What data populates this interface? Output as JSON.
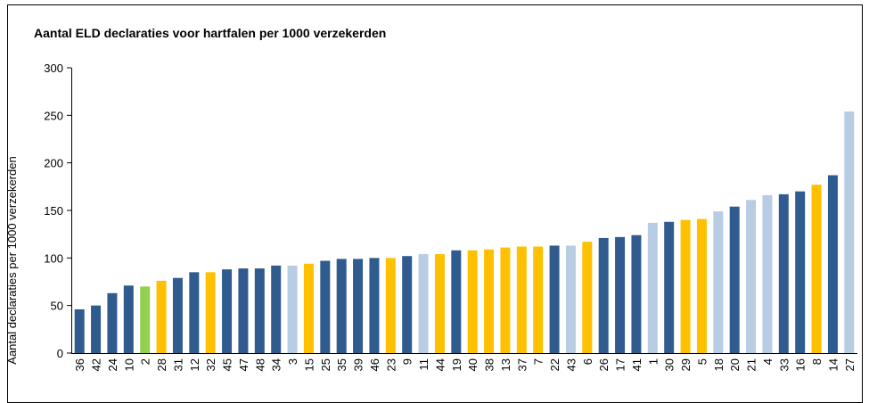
{
  "chart_data": {
    "type": "bar",
    "title": "Aantal ELD declaraties voor hartfalen per 1000 verzekerden",
    "y_label": "Aantal declaraties per 1000 verzekerden",
    "categories": [
      "36",
      "42",
      "24",
      "10",
      "2",
      "28",
      "31",
      "12",
      "32",
      "45",
      "47",
      "48",
      "34",
      "3",
      "15",
      "25",
      "35",
      "39",
      "46",
      "23",
      "9",
      "11",
      "44",
      "19",
      "40",
      "38",
      "13",
      "37",
      "7",
      "22",
      "43",
      "6",
      "26",
      "17",
      "41",
      "1",
      "30",
      "29",
      "5",
      "18",
      "20",
      "21",
      "4",
      "33",
      "16",
      "8",
      "14",
      "27"
    ],
    "values": [
      46,
      50,
      63,
      71,
      70,
      76,
      79,
      85,
      85,
      88,
      89,
      89,
      92,
      92,
      94,
      97,
      99,
      99,
      100,
      100,
      102,
      104,
      104,
      108,
      108,
      109,
      111,
      112,
      112,
      113,
      113,
      117,
      121,
      122,
      124,
      137,
      138,
      140,
      141,
      149,
      154,
      161,
      166,
      167,
      170,
      177,
      187,
      254
    ],
    "colors": [
      "#2f5b8f",
      "#2f5b8f",
      "#2f5b8f",
      "#2f5b8f",
      "#92d050",
      "#ffc000",
      "#2f5b8f",
      "#2f5b8f",
      "#ffc000",
      "#2f5b8f",
      "#2f5b8f",
      "#2f5b8f",
      "#2f5b8f",
      "#b8cce4",
      "#ffc000",
      "#2f5b8f",
      "#2f5b8f",
      "#2f5b8f",
      "#2f5b8f",
      "#ffc000",
      "#2f5b8f",
      "#b8cce4",
      "#ffc000",
      "#2f5b8f",
      "#ffc000",
      "#ffc000",
      "#ffc000",
      "#ffc000",
      "#ffc000",
      "#2f5b8f",
      "#b8cce4",
      "#ffc000",
      "#2f5b8f",
      "#2f5b8f",
      "#2f5b8f",
      "#b8cce4",
      "#2f5b8f",
      "#ffc000",
      "#ffc000",
      "#b8cce4",
      "#2f5b8f",
      "#b8cce4",
      "#b8cce4",
      "#2f5b8f",
      "#2f5b8f",
      "#ffc000",
      "#2f5b8f",
      "#b8cce4"
    ],
    "ylim": [
      0,
      300
    ],
    "yticks": [
      0,
      50,
      100,
      150,
      200,
      250,
      300
    ],
    "grid": false
  }
}
